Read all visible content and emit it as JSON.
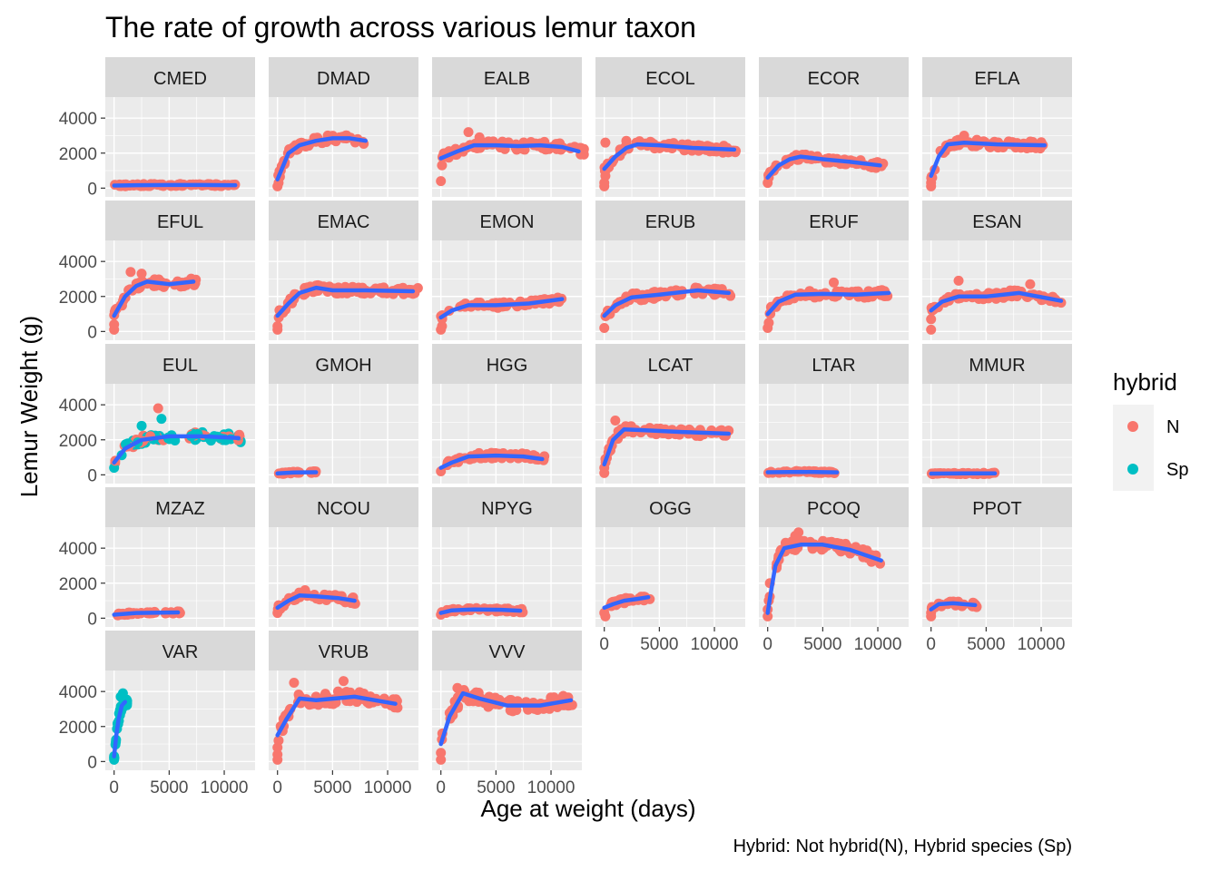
{
  "chart_data": {
    "type": "scatter",
    "subtype": "faceted scatter with loess smooth",
    "title": "The rate of growth across various lemur taxon",
    "xlabel": "Age at weight (days)",
    "ylabel": "Lemur Weight (g)",
    "caption": "Hybrid: Not hybrid(N), Hybrid species (Sp)",
    "xlim": [
      -800,
      12800
    ],
    "ylim": [
      -500,
      5200
    ],
    "x_ticks": [
      0,
      5000,
      10000
    ],
    "x_tick_labels": [
      "0",
      "5000",
      "10000"
    ],
    "y_ticks": [
      0,
      2000,
      4000
    ],
    "y_tick_labels": [
      "0",
      "2000",
      "4000"
    ],
    "ncol": 6,
    "grid": true,
    "smooth_color": "#3366FF",
    "legend": {
      "title": "hybrid",
      "position": "right",
      "entries": [
        {
          "label": "N",
          "color": "#F8766D"
        },
        {
          "label": "Sp",
          "color": "#00BFC4"
        }
      ]
    },
    "facets": [
      {
        "name": "CMED",
        "xmax": 11000,
        "smooth": [
          [
            0,
            150
          ],
          [
            2000,
            170
          ],
          [
            5000,
            180
          ],
          [
            8000,
            180
          ],
          [
            11000,
            170
          ]
        ],
        "spread": 60,
        "start": [],
        "outliers": []
      },
      {
        "name": "DMAD",
        "xmax": 8000,
        "smooth": [
          [
            0,
            500
          ],
          [
            1000,
            2000
          ],
          [
            2000,
            2450
          ],
          [
            3500,
            2700
          ],
          [
            5000,
            2850
          ],
          [
            6500,
            2850
          ],
          [
            8000,
            2700
          ]
        ],
        "spread": 200,
        "start": [
          [
            0,
            100
          ],
          [
            100,
            300
          ],
          [
            200,
            700
          ],
          [
            300,
            1000
          ]
        ],
        "outliers": []
      },
      {
        "name": "EALB",
        "xmax": 13000,
        "smooth": [
          [
            0,
            1700
          ],
          [
            1500,
            2100
          ],
          [
            3000,
            2450
          ],
          [
            5000,
            2450
          ],
          [
            7000,
            2400
          ],
          [
            9000,
            2450
          ],
          [
            11000,
            2350
          ],
          [
            12500,
            2100
          ]
        ],
        "spread": 220,
        "start": [
          [
            0,
            400
          ],
          [
            100,
            1300
          ]
        ],
        "outliers": [
          [
            2500,
            3200
          ],
          [
            3500,
            2900
          ]
        ]
      },
      {
        "name": "ECOL",
        "xmax": 12000,
        "smooth": [
          [
            0,
            1100
          ],
          [
            1000,
            1800
          ],
          [
            2000,
            2300
          ],
          [
            3000,
            2500
          ],
          [
            5000,
            2450
          ],
          [
            8000,
            2300
          ],
          [
            11800,
            2200
          ]
        ],
        "spread": 200,
        "start": [
          [
            0,
            100
          ],
          [
            0,
            300
          ],
          [
            100,
            700
          ],
          [
            100,
            2600
          ]
        ],
        "outliers": [
          [
            2000,
            2700
          ]
        ]
      },
      {
        "name": "ECOR",
        "xmax": 10500,
        "smooth": [
          [
            0,
            600
          ],
          [
            1000,
            1300
          ],
          [
            2000,
            1650
          ],
          [
            3000,
            1800
          ],
          [
            5000,
            1650
          ],
          [
            7500,
            1500
          ],
          [
            10200,
            1300
          ]
        ],
        "spread": 180,
        "start": [
          [
            0,
            300
          ],
          [
            100,
            600
          ]
        ],
        "outliers": []
      },
      {
        "name": "EFLA",
        "xmax": 10500,
        "smooth": [
          [
            0,
            700
          ],
          [
            700,
            1800
          ],
          [
            1500,
            2500
          ],
          [
            3000,
            2600
          ],
          [
            6000,
            2500
          ],
          [
            10300,
            2450
          ]
        ],
        "spread": 200,
        "start": [
          [
            0,
            100
          ],
          [
            0,
            300
          ],
          [
            100,
            600
          ]
        ],
        "outliers": [
          [
            3000,
            3000
          ]
        ]
      },
      {
        "name": "EFUL",
        "xmax": 7500,
        "smooth": [
          [
            0,
            900
          ],
          [
            1000,
            2000
          ],
          [
            2000,
            2600
          ],
          [
            3000,
            2850
          ],
          [
            5000,
            2700
          ],
          [
            7200,
            2850
          ]
        ],
        "spread": 220,
        "start": [
          [
            0,
            100
          ],
          [
            0,
            400
          ]
        ],
        "outliers": [
          [
            1500,
            3400
          ],
          [
            2500,
            3300
          ]
        ]
      },
      {
        "name": "EMAC",
        "xmax": 12800,
        "smooth": [
          [
            0,
            900
          ],
          [
            1000,
            1600
          ],
          [
            2000,
            2200
          ],
          [
            3500,
            2500
          ],
          [
            5000,
            2350
          ],
          [
            8000,
            2350
          ],
          [
            12300,
            2300
          ]
        ],
        "spread": 200,
        "start": [
          [
            0,
            100
          ],
          [
            0,
            300
          ]
        ],
        "outliers": []
      },
      {
        "name": "EMON",
        "xmax": 11000,
        "smooth": [
          [
            0,
            800
          ],
          [
            1000,
            1200
          ],
          [
            2500,
            1500
          ],
          [
            5000,
            1500
          ],
          [
            8000,
            1600
          ],
          [
            11000,
            1850
          ]
        ],
        "spread": 160,
        "start": [
          [
            0,
            100
          ],
          [
            100,
            300
          ]
        ],
        "outliers": []
      },
      {
        "name": "ERUB",
        "xmax": 11500,
        "smooth": [
          [
            0,
            900
          ],
          [
            1000,
            1500
          ],
          [
            2500,
            1950
          ],
          [
            5000,
            2100
          ],
          [
            8500,
            2350
          ],
          [
            11300,
            2200
          ]
        ],
        "spread": 220,
        "start": [
          [
            0,
            200
          ]
        ],
        "outliers": []
      },
      {
        "name": "ERUF",
        "xmax": 11000,
        "smooth": [
          [
            0,
            1000
          ],
          [
            1000,
            1700
          ],
          [
            2500,
            2100
          ],
          [
            5000,
            2150
          ],
          [
            8000,
            2100
          ],
          [
            11000,
            2200
          ]
        ],
        "spread": 200,
        "start": [
          [
            0,
            200
          ],
          [
            100,
            500
          ]
        ],
        "outliers": [
          [
            6000,
            2800
          ]
        ]
      },
      {
        "name": "ESAN",
        "xmax": 12000,
        "smooth": [
          [
            0,
            1200
          ],
          [
            1000,
            1700
          ],
          [
            2500,
            2000
          ],
          [
            5000,
            2000
          ],
          [
            8000,
            2200
          ],
          [
            11800,
            1750
          ]
        ],
        "spread": 200,
        "start": [
          [
            0,
            100
          ],
          [
            0,
            700
          ],
          [
            100,
            1200
          ]
        ],
        "outliers": [
          [
            2500,
            2900
          ],
          [
            9000,
            2700
          ]
        ]
      },
      {
        "name": "EUL",
        "xmax": 11500,
        "smooth": [
          [
            0,
            700
          ],
          [
            1000,
            1500
          ],
          [
            2500,
            2000
          ],
          [
            5000,
            2200
          ],
          [
            8000,
            2200
          ],
          [
            11300,
            2100
          ]
        ],
        "spread": 240,
        "start": [
          [
            0,
            400
          ],
          [
            100,
            800
          ]
        ],
        "outliers": [
          [
            4000,
            3800
          ],
          [
            4300,
            3200
          ],
          [
            2500,
            2800
          ]
        ],
        "hybrid_sp": true
      },
      {
        "name": "GMOH",
        "xmax": 3800,
        "smooth": [
          [
            0,
            80
          ],
          [
            1500,
            130
          ],
          [
            3500,
            150
          ]
        ],
        "spread": 50,
        "start": [],
        "outliers": []
      },
      {
        "name": "HGG",
        "xmax": 9500,
        "smooth": [
          [
            0,
            400
          ],
          [
            1000,
            700
          ],
          [
            2500,
            1050
          ],
          [
            5000,
            1100
          ],
          [
            7500,
            1050
          ],
          [
            9200,
            900
          ]
        ],
        "spread": 180,
        "start": [
          [
            0,
            200
          ]
        ],
        "outliers": []
      },
      {
        "name": "LCAT",
        "xmax": 11500,
        "smooth": [
          [
            0,
            600
          ],
          [
            800,
            2000
          ],
          [
            1800,
            2600
          ],
          [
            3500,
            2550
          ],
          [
            7000,
            2450
          ],
          [
            11300,
            2350
          ]
        ],
        "spread": 200,
        "start": [
          [
            0,
            100
          ],
          [
            0,
            400
          ],
          [
            100,
            900
          ]
        ],
        "outliers": [
          [
            1000,
            3100
          ]
        ]
      },
      {
        "name": "LTAR",
        "xmax": 6500,
        "smooth": [
          [
            0,
            150
          ],
          [
            3000,
            170
          ],
          [
            6300,
            140
          ]
        ],
        "spread": 50,
        "start": [],
        "outliers": []
      },
      {
        "name": "MMUR",
        "xmax": 6000,
        "smooth": [
          [
            0,
            70
          ],
          [
            3000,
            80
          ],
          [
            5800,
            80
          ]
        ],
        "spread": 40,
        "start": [],
        "outliers": []
      },
      {
        "name": "MZAZ",
        "xmax": 6000,
        "smooth": [
          [
            0,
            200
          ],
          [
            2000,
            300
          ],
          [
            5800,
            330
          ]
        ],
        "spread": 60,
        "start": [],
        "outliers": []
      },
      {
        "name": "NCOU",
        "xmax": 7200,
        "smooth": [
          [
            0,
            600
          ],
          [
            1000,
            1000
          ],
          [
            2000,
            1300
          ],
          [
            3500,
            1250
          ],
          [
            5500,
            1150
          ],
          [
            7000,
            1000
          ]
        ],
        "spread": 180,
        "start": [
          [
            0,
            300
          ]
        ],
        "outliers": [
          [
            2500,
            1600
          ]
        ]
      },
      {
        "name": "NPYG",
        "xmax": 7500,
        "smooth": [
          [
            0,
            300
          ],
          [
            1000,
            450
          ],
          [
            3000,
            500
          ],
          [
            5500,
            480
          ],
          [
            7200,
            430
          ]
        ],
        "spread": 100,
        "start": [
          [
            0,
            200
          ]
        ],
        "outliers": []
      },
      {
        "name": "OGG",
        "xmax": 4300,
        "smooth": [
          [
            0,
            600
          ],
          [
            800,
            800
          ],
          [
            1800,
            1000
          ],
          [
            3000,
            1100
          ],
          [
            4000,
            1200
          ]
        ],
        "spread": 150,
        "start": [
          [
            0,
            300
          ],
          [
            100,
            100
          ]
        ],
        "outliers": []
      },
      {
        "name": "PCOQ",
        "xmax": 10500,
        "smooth": [
          [
            0,
            300
          ],
          [
            300,
            1500
          ],
          [
            700,
            3000
          ],
          [
            1500,
            4000
          ],
          [
            3000,
            4200
          ],
          [
            5000,
            4200
          ],
          [
            7500,
            3900
          ],
          [
            10300,
            3300
          ]
        ],
        "spread": 300,
        "start": [
          [
            0,
            100
          ],
          [
            0,
            500
          ],
          [
            100,
            1000
          ],
          [
            200,
            2000
          ]
        ],
        "outliers": [
          [
            2800,
            4900
          ],
          [
            2500,
            4700
          ]
        ]
      },
      {
        "name": "PPOT",
        "xmax": 4300,
        "smooth": [
          [
            0,
            500
          ],
          [
            700,
            800
          ],
          [
            2000,
            850
          ],
          [
            4000,
            750
          ]
        ],
        "spread": 130,
        "start": [
          [
            0,
            100
          ],
          [
            0,
            300
          ]
        ],
        "outliers": []
      },
      {
        "name": "VAR",
        "xmax": 1200,
        "smooth": [
          [
            0,
            300
          ],
          [
            200,
            1500
          ],
          [
            400,
            2400
          ],
          [
            700,
            3200
          ],
          [
            1000,
            3400
          ]
        ],
        "spread": 200,
        "start": [
          [
            0,
            100
          ],
          [
            0,
            300
          ]
        ],
        "outliers": [
          [
            800,
            3900
          ],
          [
            600,
            3700
          ]
        ],
        "hybrid_sp": true,
        "sp_only": true
      },
      {
        "name": "VRUB",
        "xmax": 11000,
        "smooth": [
          [
            0,
            1500
          ],
          [
            800,
            2400
          ],
          [
            2000,
            3600
          ],
          [
            3500,
            3500
          ],
          [
            7000,
            3700
          ],
          [
            10700,
            3300
          ]
        ],
        "spread": 350,
        "start": [
          [
            0,
            100
          ],
          [
            0,
            400
          ],
          [
            0,
            800
          ],
          [
            100,
            1200
          ]
        ],
        "outliers": [
          [
            1500,
            4500
          ],
          [
            6000,
            4600
          ],
          [
            5500,
            4000
          ]
        ]
      },
      {
        "name": "VVV",
        "xmax": 12000,
        "smooth": [
          [
            0,
            1000
          ],
          [
            800,
            2600
          ],
          [
            2000,
            3900
          ],
          [
            3500,
            3600
          ],
          [
            6000,
            3200
          ],
          [
            9000,
            3200
          ],
          [
            11800,
            3500
          ]
        ],
        "spread": 350,
        "start": [
          [
            0,
            100
          ],
          [
            0,
            500
          ]
        ],
        "outliers": [
          [
            1500,
            4200
          ]
        ]
      }
    ]
  }
}
